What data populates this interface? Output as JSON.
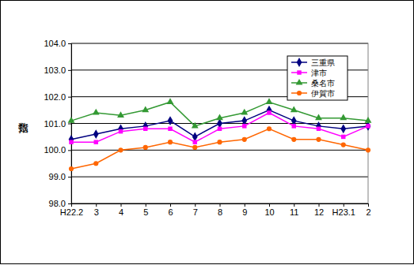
{
  "chart_data": {
    "type": "line",
    "y_label": "指数",
    "categories": [
      "H22.2",
      "3",
      "4",
      "5",
      "6",
      "7",
      "8",
      "9",
      "10",
      "11",
      "12",
      "H23.1",
      "2"
    ],
    "ylim": [
      98,
      104
    ],
    "yticks": [
      {
        "value": 98,
        "label": "98.0"
      },
      {
        "value": 99,
        "label": "99.0"
      },
      {
        "value": 100,
        "label": "100.0"
      },
      {
        "value": 101,
        "label": "101.0"
      },
      {
        "value": 102,
        "label": "102.0"
      },
      {
        "value": 103,
        "label": "103.0"
      },
      {
        "value": 104,
        "label": "104.0"
      }
    ],
    "grid": true,
    "legend": "upper right",
    "series": [
      {
        "name": "三重県",
        "color": "#000080",
        "marker": "diamond",
        "values": [
          100.4,
          100.6,
          100.8,
          100.9,
          101.1,
          100.5,
          101.0,
          101.1,
          101.5,
          101.1,
          100.9,
          100.8,
          100.9
        ]
      },
      {
        "name": "津市",
        "color": "#ff00ff",
        "marker": "square",
        "values": [
          100.3,
          100.3,
          100.7,
          100.8,
          100.8,
          100.3,
          100.8,
          100.9,
          101.4,
          100.9,
          100.8,
          100.5,
          100.9
        ]
      },
      {
        "name": "桑名市",
        "color": "#339933",
        "marker": "triangle",
        "values": [
          101.1,
          101.4,
          101.3,
          101.5,
          101.8,
          100.9,
          101.2,
          101.4,
          101.8,
          101.5,
          101.2,
          101.2,
          101.1
        ]
      },
      {
        "name": "伊賀市",
        "color": "#ff6600",
        "marker": "circle",
        "values": [
          99.3,
          99.5,
          100.0,
          100.1,
          100.3,
          100.1,
          100.3,
          100.4,
          100.8,
          100.4,
          100.4,
          100.2,
          100.0
        ]
      }
    ]
  }
}
